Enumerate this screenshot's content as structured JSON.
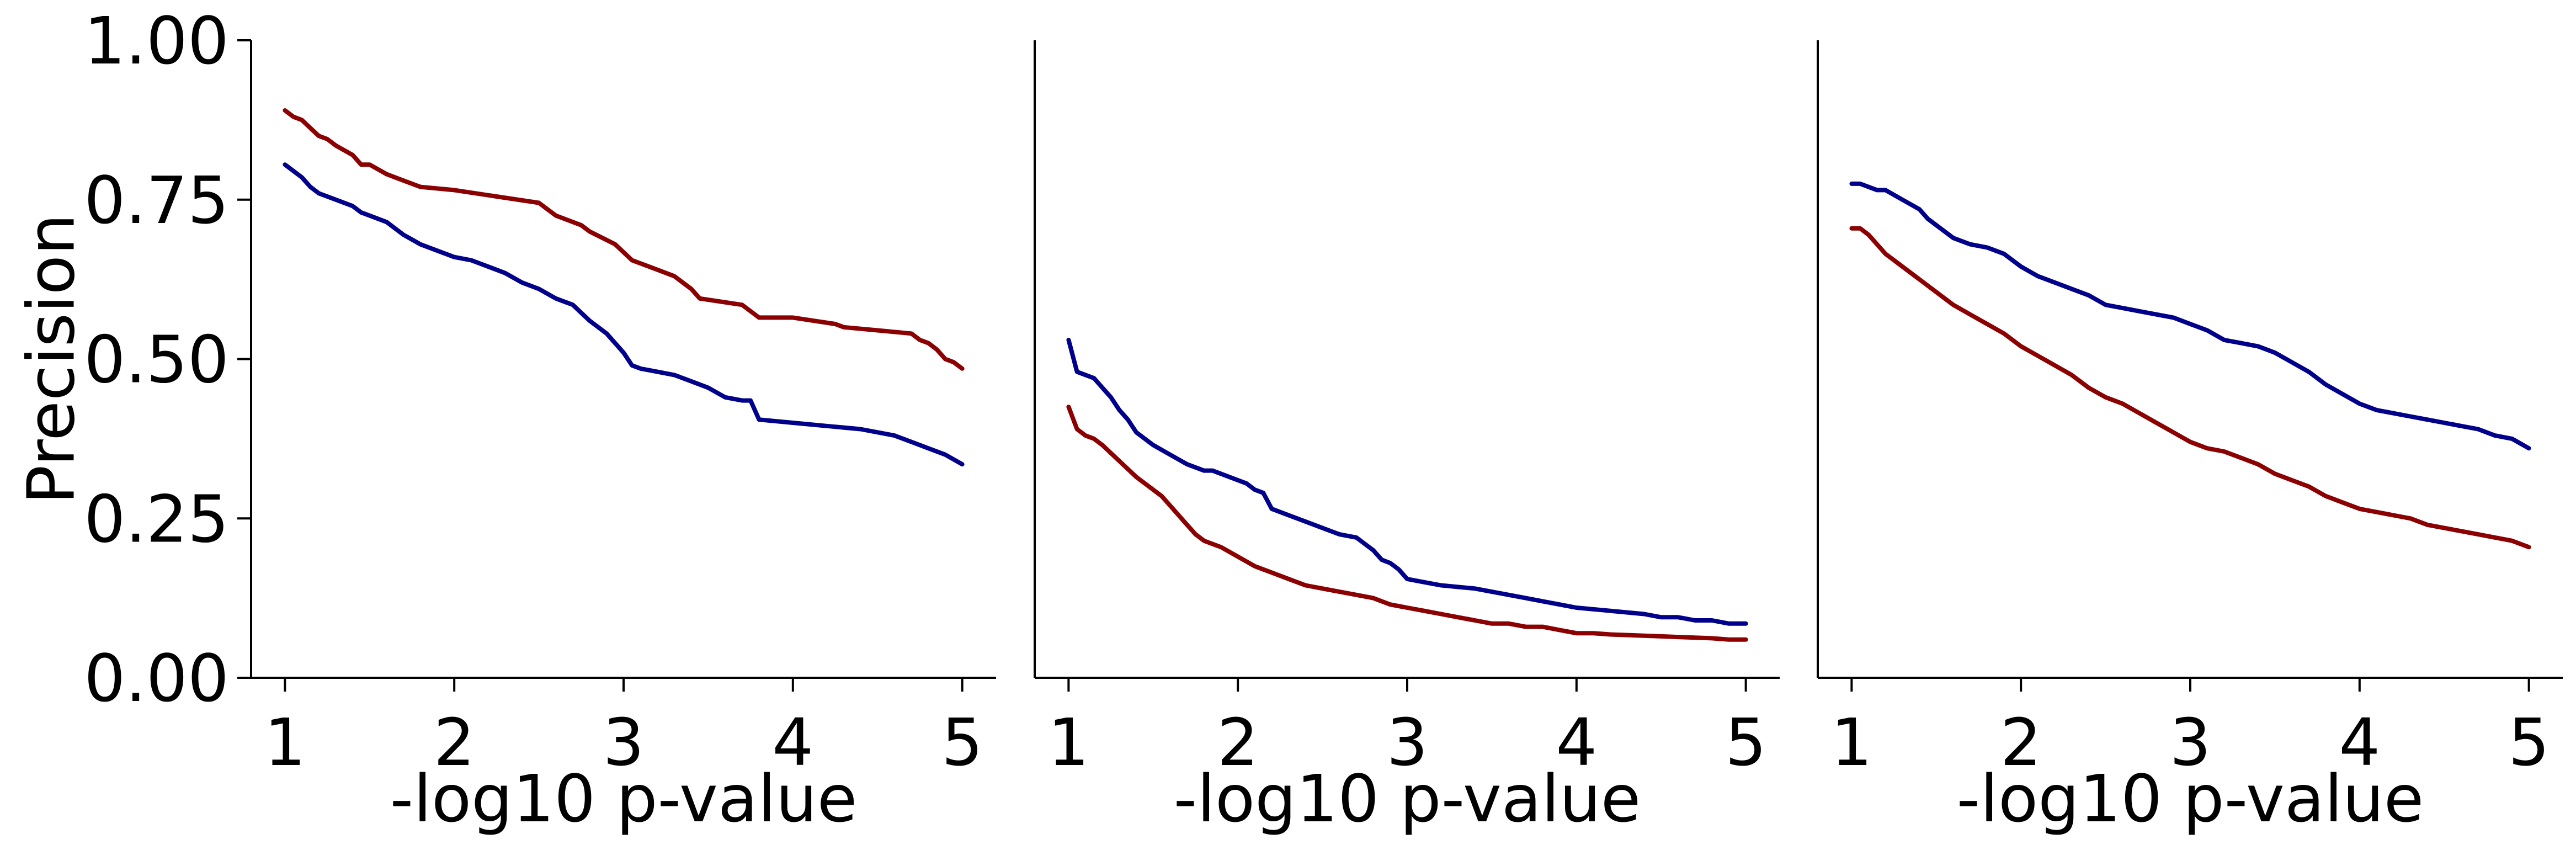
{
  "chart_data": [
    {
      "type": "line",
      "xlabel": "-log10 p-value",
      "ylabel": "Precision",
      "xlim": [
        0.8,
        5.2
      ],
      "ylim": [
        0,
        1
      ],
      "xticks": [
        1,
        2,
        3,
        4,
        5
      ],
      "xtick_labels": [
        "1",
        "2",
        "3",
        "4",
        "5"
      ],
      "yticks": [
        0,
        0.25,
        0.5,
        0.75,
        1
      ],
      "ytick_labels": [
        "0.00",
        "0.25",
        "0.50",
        "0.75",
        "1.00"
      ],
      "show_y_ticklabels": true,
      "grid": false,
      "series": [
        {
          "color": "#8b0000",
          "x": [
            1.0,
            1.05,
            1.1,
            1.2,
            1.25,
            1.3,
            1.4,
            1.45,
            1.5,
            1.6,
            1.7,
            1.75,
            1.8,
            2.0,
            2.25,
            2.5,
            2.55,
            2.6,
            2.75,
            2.8,
            2.95,
            3.05,
            3.1,
            3.2,
            3.3,
            3.4,
            3.45,
            3.7,
            3.8,
            4.0,
            4.25,
            4.3,
            4.5,
            4.7,
            4.75,
            4.8,
            4.85,
            4.9,
            4.95,
            5.0
          ],
          "y": [
            0.89,
            0.88,
            0.875,
            0.85,
            0.845,
            0.835,
            0.82,
            0.805,
            0.805,
            0.79,
            0.78,
            0.775,
            0.77,
            0.765,
            0.755,
            0.745,
            0.735,
            0.725,
            0.71,
            0.7,
            0.68,
            0.655,
            0.65,
            0.64,
            0.63,
            0.61,
            0.595,
            0.585,
            0.565,
            0.565,
            0.555,
            0.55,
            0.545,
            0.54,
            0.53,
            0.525,
            0.515,
            0.5,
            0.495,
            0.485
          ]
        },
        {
          "color": "#00008b",
          "x": [
            1.0,
            1.1,
            1.15,
            1.2,
            1.3,
            1.4,
            1.45,
            1.5,
            1.6,
            1.7,
            1.8,
            2.0,
            2.1,
            2.2,
            2.3,
            2.4,
            2.5,
            2.6,
            2.7,
            2.8,
            2.9,
            3.0,
            3.05,
            3.1,
            3.2,
            3.3,
            3.4,
            3.5,
            3.6,
            3.7,
            3.75,
            3.8,
            4.0,
            4.2,
            4.4,
            4.6,
            4.7,
            4.8,
            4.9,
            5.0
          ],
          "y": [
            0.805,
            0.785,
            0.77,
            0.76,
            0.75,
            0.74,
            0.73,
            0.725,
            0.715,
            0.695,
            0.68,
            0.66,
            0.655,
            0.645,
            0.635,
            0.62,
            0.61,
            0.595,
            0.585,
            0.56,
            0.54,
            0.51,
            0.49,
            0.485,
            0.48,
            0.475,
            0.465,
            0.455,
            0.44,
            0.435,
            0.435,
            0.405,
            0.4,
            0.395,
            0.39,
            0.38,
            0.37,
            0.36,
            0.35,
            0.335
          ]
        }
      ]
    },
    {
      "type": "line",
      "xlabel": "-log10 p-value",
      "ylabel": "",
      "xlim": [
        0.8,
        5.2
      ],
      "ylim": [
        0,
        1
      ],
      "xticks": [
        1,
        2,
        3,
        4,
        5
      ],
      "xtick_labels": [
        "1",
        "2",
        "3",
        "4",
        "5"
      ],
      "yticks": [],
      "ytick_labels": [],
      "show_y_ticklabels": false,
      "grid": false,
      "series": [
        {
          "color": "#00008b",
          "x": [
            1.0,
            1.05,
            1.1,
            1.15,
            1.2,
            1.25,
            1.3,
            1.35,
            1.4,
            1.5,
            1.6,
            1.7,
            1.8,
            1.85,
            1.9,
            2.0,
            2.05,
            2.1,
            2.15,
            2.2,
            2.3,
            2.4,
            2.5,
            2.6,
            2.7,
            2.75,
            2.8,
            2.85,
            2.9,
            2.95,
            3.0,
            3.1,
            3.2,
            3.4,
            3.5,
            3.6,
            3.7,
            3.8,
            3.9,
            4.0,
            4.2,
            4.4,
            4.5,
            4.6,
            4.7,
            4.8,
            4.9,
            5.0
          ],
          "y": [
            0.53,
            0.48,
            0.475,
            0.47,
            0.455,
            0.44,
            0.42,
            0.405,
            0.385,
            0.365,
            0.35,
            0.335,
            0.325,
            0.325,
            0.32,
            0.31,
            0.305,
            0.295,
            0.29,
            0.265,
            0.255,
            0.245,
            0.235,
            0.225,
            0.22,
            0.21,
            0.2,
            0.185,
            0.18,
            0.17,
            0.155,
            0.15,
            0.145,
            0.14,
            0.135,
            0.13,
            0.125,
            0.12,
            0.115,
            0.11,
            0.105,
            0.1,
            0.095,
            0.095,
            0.09,
            0.09,
            0.085,
            0.085
          ]
        },
        {
          "color": "#8b0000",
          "x": [
            1.0,
            1.05,
            1.1,
            1.15,
            1.2,
            1.3,
            1.4,
            1.5,
            1.55,
            1.6,
            1.65,
            1.7,
            1.75,
            1.8,
            1.9,
            2.0,
            2.1,
            2.2,
            2.3,
            2.4,
            2.5,
            2.6,
            2.7,
            2.8,
            2.9,
            3.0,
            3.1,
            3.2,
            3.3,
            3.4,
            3.5,
            3.6,
            3.7,
            3.8,
            3.9,
            4.0,
            4.1,
            4.2,
            4.3,
            4.4,
            4.5,
            4.6,
            4.7,
            4.8,
            4.9,
            5.0
          ],
          "y": [
            0.425,
            0.39,
            0.38,
            0.375,
            0.365,
            0.34,
            0.315,
            0.295,
            0.285,
            0.27,
            0.255,
            0.24,
            0.225,
            0.215,
            0.205,
            0.19,
            0.175,
            0.165,
            0.155,
            0.145,
            0.14,
            0.135,
            0.13,
            0.125,
            0.115,
            0.11,
            0.105,
            0.1,
            0.095,
            0.09,
            0.085,
            0.085,
            0.08,
            0.08,
            0.075,
            0.07,
            0.07,
            0.068,
            0.067,
            0.066,
            0.065,
            0.064,
            0.063,
            0.062,
            0.06,
            0.06
          ]
        }
      ]
    },
    {
      "type": "line",
      "xlabel": "-log10 p-value",
      "ylabel": "",
      "xlim": [
        0.8,
        5.2
      ],
      "ylim": [
        0,
        1
      ],
      "xticks": [
        1,
        2,
        3,
        4,
        5
      ],
      "xtick_labels": [
        "1",
        "2",
        "3",
        "4",
        "5"
      ],
      "yticks": [],
      "ytick_labels": [],
      "show_y_ticklabels": false,
      "grid": false,
      "series": [
        {
          "color": "#00008b",
          "x": [
            1.0,
            1.05,
            1.1,
            1.15,
            1.2,
            1.3,
            1.4,
            1.45,
            1.5,
            1.6,
            1.7,
            1.8,
            1.9,
            2.0,
            2.1,
            2.2,
            2.3,
            2.4,
            2.5,
            2.6,
            2.7,
            2.8,
            2.9,
            3.0,
            3.1,
            3.2,
            3.3,
            3.4,
            3.5,
            3.6,
            3.7,
            3.8,
            3.9,
            4.0,
            4.1,
            4.2,
            4.3,
            4.4,
            4.5,
            4.6,
            4.7,
            4.8,
            4.9,
            5.0
          ],
          "y": [
            0.775,
            0.775,
            0.77,
            0.765,
            0.765,
            0.75,
            0.735,
            0.72,
            0.71,
            0.69,
            0.68,
            0.675,
            0.665,
            0.645,
            0.63,
            0.62,
            0.61,
            0.6,
            0.585,
            0.58,
            0.575,
            0.57,
            0.565,
            0.555,
            0.545,
            0.53,
            0.525,
            0.52,
            0.51,
            0.495,
            0.48,
            0.46,
            0.445,
            0.43,
            0.42,
            0.415,
            0.41,
            0.405,
            0.4,
            0.395,
            0.39,
            0.38,
            0.375,
            0.36
          ]
        },
        {
          "color": "#8b0000",
          "x": [
            1.0,
            1.05,
            1.1,
            1.15,
            1.2,
            1.3,
            1.4,
            1.5,
            1.6,
            1.7,
            1.8,
            1.9,
            2.0,
            2.1,
            2.2,
            2.3,
            2.4,
            2.5,
            2.6,
            2.7,
            2.8,
            2.9,
            3.0,
            3.1,
            3.2,
            3.3,
            3.4,
            3.5,
            3.6,
            3.7,
            3.8,
            3.9,
            4.0,
            4.1,
            4.2,
            4.3,
            4.4,
            4.5,
            4.6,
            4.7,
            4.8,
            4.9,
            5.0
          ],
          "y": [
            0.705,
            0.705,
            0.695,
            0.68,
            0.665,
            0.645,
            0.625,
            0.605,
            0.585,
            0.57,
            0.555,
            0.54,
            0.52,
            0.505,
            0.49,
            0.475,
            0.455,
            0.44,
            0.43,
            0.415,
            0.4,
            0.385,
            0.37,
            0.36,
            0.355,
            0.345,
            0.335,
            0.32,
            0.31,
            0.3,
            0.285,
            0.275,
            0.265,
            0.26,
            0.255,
            0.25,
            0.24,
            0.235,
            0.23,
            0.225,
            0.22,
            0.215,
            0.205
          ]
        }
      ]
    }
  ]
}
